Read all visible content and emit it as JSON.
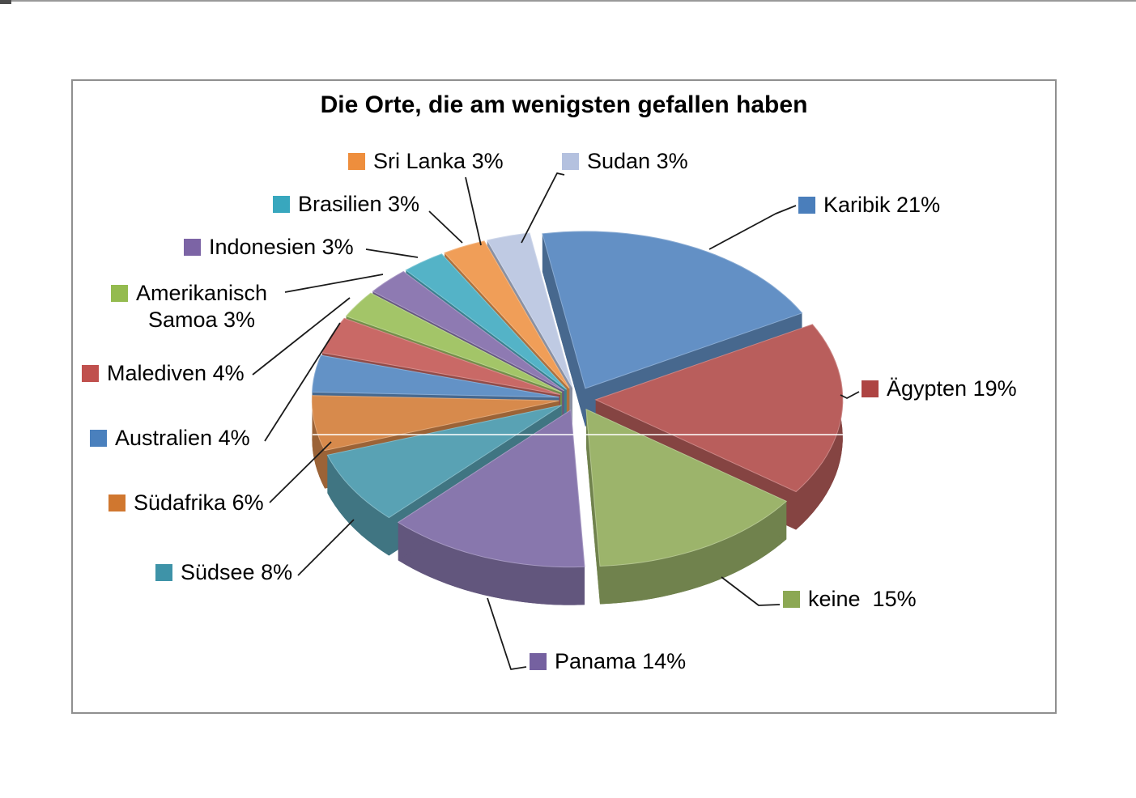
{
  "page": {
    "background_color": "#ffffff",
    "frame_border_color": "#8f8f8f"
  },
  "chart_data": {
    "type": "pie",
    "style": "3d-exploded-pie",
    "title": "Die Orte, die am wenigsten gefallen haben",
    "unit": "%",
    "legend_position": "callout-labels-around-pie",
    "slices": [
      {
        "name": "Karibik",
        "value": 21,
        "label": "Karibik 21%",
        "color": "#4A7EBB"
      },
      {
        "name": "Ägypten",
        "value": 19,
        "label": "Ägypten 19%",
        "color": "#AE4442"
      },
      {
        "name": "keine",
        "value": 15,
        "label": "keine  15%",
        "color": "#8CA853"
      },
      {
        "name": "Panama",
        "value": 14,
        "label": "Panama 14%",
        "color": "#7561A0"
      },
      {
        "name": "Südsee",
        "value": 8,
        "label": "Südsee 8%",
        "color": "#3E93A8"
      },
      {
        "name": "Südafrika",
        "value": 6,
        "label": "Südafrika 6%",
        "color": "#D0772F"
      },
      {
        "name": "Australien",
        "value": 4,
        "label": "Australien 4%",
        "color": "#4A80BD"
      },
      {
        "name": "Malediven",
        "value": 4,
        "label": "Malediven 4%",
        "color": "#C0504D"
      },
      {
        "name": "Amerikanisch Samoa",
        "value": 3,
        "label": "Amerikanisch\nSamoa 3%",
        "color": "#94BB4F"
      },
      {
        "name": "Indonesien",
        "value": 3,
        "label": "Indonesien 3%",
        "color": "#7C64A5"
      },
      {
        "name": "Brasilien",
        "value": 3,
        "label": "Brasilien 3%",
        "color": "#38A7BE"
      },
      {
        "name": "Sri Lanka",
        "value": 3,
        "label": "Sri Lanka 3%",
        "color": "#EE8E3D"
      },
      {
        "name": "Sudan",
        "value": 3,
        "label": "Sudan 3%",
        "color": "#B4C1DF"
      }
    ]
  }
}
